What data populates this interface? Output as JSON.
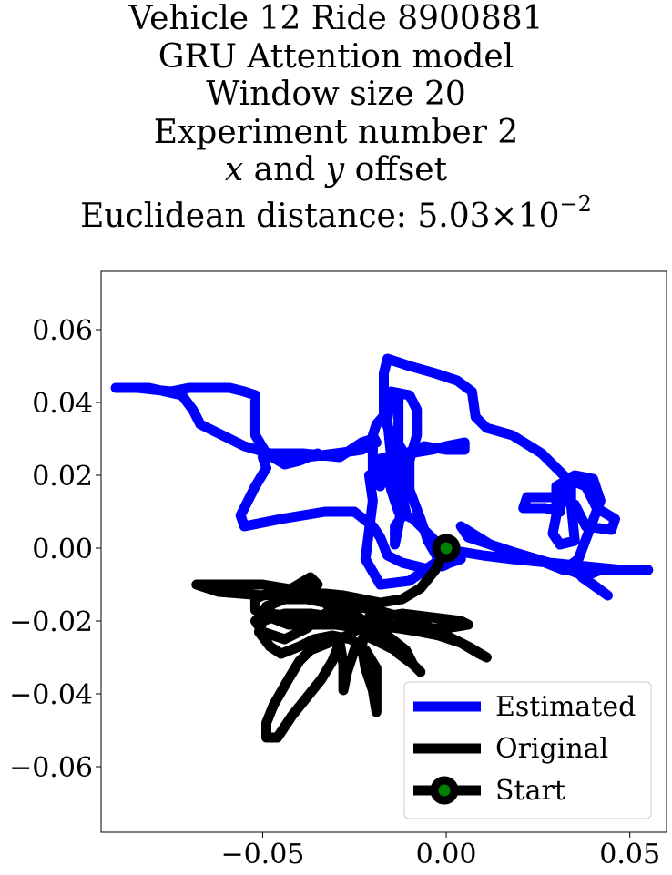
{
  "title": {
    "line1": "Vehicle 12 Ride 8900881",
    "line2": "GRU Attention model",
    "line3": "Window size 20",
    "line4": "Experiment number 2",
    "line5_x": "x",
    "line5_and": " and ",
    "line5_y": "y",
    "line5_rest": " offset",
    "line6_prefix": "Euclidean distance: 5.03",
    "line6_times": "×",
    "line6_base": "10",
    "line6_exp": "−2"
  },
  "chart_data": {
    "type": "line",
    "xlim": [
      -0.094,
      0.06
    ],
    "ylim": [
      -0.078,
      0.076
    ],
    "xticks": [
      -0.05,
      0.0,
      0.05
    ],
    "xtick_labels": [
      "−0.05",
      "0.00",
      "0.05"
    ],
    "yticks": [
      0.06,
      0.04,
      0.02,
      0.0,
      -0.02,
      -0.04,
      -0.06
    ],
    "ytick_labels": [
      "0.06",
      "0.04",
      "0.02",
      "0.00",
      "−0.02",
      "−0.04",
      "−0.06"
    ],
    "grid": false,
    "legend_position": "lower-right",
    "series": [
      {
        "name": "Estimated",
        "color": "#0000ff",
        "points": [
          [
            0.0,
            0.0
          ],
          [
            -0.003,
            -0.004
          ],
          [
            -0.01,
            -0.009
          ],
          [
            -0.018,
            -0.01
          ],
          [
            -0.022,
            -0.003
          ],
          [
            -0.021,
            0.005
          ],
          [
            -0.02,
            0.013
          ],
          [
            -0.021,
            0.02
          ],
          [
            -0.015,
            0.022
          ],
          [
            -0.012,
            0.027
          ],
          [
            -0.017,
            0.035
          ],
          [
            -0.017,
            0.048
          ],
          [
            -0.016,
            0.052
          ],
          [
            -0.01,
            0.05
          ],
          [
            -0.003,
            0.048
          ],
          [
            0.003,
            0.046
          ],
          [
            0.007,
            0.043
          ],
          [
            0.008,
            0.036
          ],
          [
            0.011,
            0.033
          ],
          [
            0.018,
            0.031
          ],
          [
            0.026,
            0.026
          ],
          [
            0.033,
            0.019
          ],
          [
            0.038,
            0.017
          ],
          [
            0.041,
            0.011
          ],
          [
            0.046,
            0.008
          ],
          [
            0.045,
            0.005
          ],
          [
            0.038,
            0.006
          ],
          [
            0.035,
            0.012
          ],
          [
            0.03,
            0.014
          ],
          [
            0.022,
            0.014
          ],
          [
            0.021,
            0.011
          ],
          [
            0.027,
            0.011
          ],
          [
            0.031,
            0.01
          ],
          [
            0.032,
            0.018
          ],
          [
            0.034,
            0.019
          ],
          [
            0.034,
            0.012
          ],
          [
            0.035,
            0.002
          ],
          [
            0.031,
            0.001
          ],
          [
            0.029,
            0.004
          ],
          [
            0.03,
            0.009
          ],
          [
            0.03,
            0.017
          ],
          [
            0.035,
            0.02
          ],
          [
            0.04,
            0.019
          ],
          [
            0.042,
            0.013
          ],
          [
            0.039,
            0.005
          ],
          [
            0.036,
            -0.003
          ],
          [
            0.032,
            -0.006
          ],
          [
            0.027,
            -0.004
          ],
          [
            0.02,
            -0.002
          ],
          [
            0.012,
            0.001
          ],
          [
            0.004,
            0.006
          ],
          [
            0.006,
            0.003
          ],
          [
            0.018,
            -0.001
          ],
          [
            0.028,
            -0.004
          ],
          [
            0.036,
            -0.007
          ],
          [
            0.044,
            -0.013
          ],
          [
            0.037,
            -0.008
          ],
          [
            0.042,
            -0.006
          ],
          [
            0.052,
            -0.006
          ],
          [
            0.055,
            -0.006
          ],
          [
            0.048,
            -0.006
          ],
          [
            0.038,
            -0.005
          ],
          [
            0.028,
            -0.004
          ],
          [
            0.018,
            -0.003
          ],
          [
            0.01,
            -0.002
          ],
          [
            0.004,
            -0.001
          ],
          [
            0.0,
            -0.003
          ],
          [
            -0.004,
            -0.006
          ],
          [
            -0.012,
            -0.004
          ],
          [
            -0.016,
            -0.002
          ],
          [
            -0.018,
            0.003
          ],
          [
            -0.02,
            0.006
          ],
          [
            -0.025,
            0.01
          ],
          [
            -0.033,
            0.01
          ],
          [
            -0.045,
            0.008
          ],
          [
            -0.055,
            0.006
          ],
          [
            -0.056,
            0.009
          ],
          [
            -0.052,
            0.017
          ],
          [
            -0.049,
            0.022
          ],
          [
            -0.05,
            0.025
          ],
          [
            -0.046,
            0.026
          ],
          [
            -0.038,
            0.025
          ],
          [
            -0.03,
            0.026
          ],
          [
            -0.023,
            0.027
          ],
          [
            -0.019,
            0.029
          ],
          [
            -0.02,
            0.031
          ],
          [
            -0.019,
            0.034
          ],
          [
            -0.013,
            0.041
          ],
          [
            -0.013,
            0.035
          ],
          [
            -0.013,
            0.027
          ],
          [
            -0.012,
            0.02
          ],
          [
            -0.012,
            0.014
          ],
          [
            -0.011,
            0.01
          ],
          [
            -0.014,
            0.006
          ],
          [
            -0.014,
            0.001
          ],
          [
            -0.013,
            0.006
          ],
          [
            -0.012,
            0.013
          ],
          [
            -0.013,
            0.018
          ],
          [
            -0.015,
            0.025
          ],
          [
            -0.016,
            0.035
          ],
          [
            -0.015,
            0.043
          ],
          [
            -0.01,
            0.042
          ],
          [
            -0.008,
            0.038
          ],
          [
            -0.008,
            0.031
          ],
          [
            -0.01,
            0.024
          ],
          [
            -0.01,
            0.016
          ],
          [
            -0.007,
            0.008
          ],
          [
            -0.005,
            0.002
          ],
          [
            -0.001,
            -0.005
          ],
          [
            0.001,
            -0.004
          ],
          [
            0.004,
            -0.003
          ],
          [
            -0.002,
            0.001
          ],
          [
            -0.006,
            0.005
          ],
          [
            -0.009,
            0.008
          ],
          [
            -0.013,
            0.01
          ],
          [
            -0.015,
            0.016
          ],
          [
            -0.016,
            0.021
          ],
          [
            -0.02,
            0.024
          ],
          [
            -0.016,
            0.025
          ],
          [
            -0.01,
            0.026
          ],
          [
            -0.004,
            0.027
          ],
          [
            0.0,
            0.028
          ],
          [
            0.005,
            0.029
          ],
          [
            0.005,
            0.027
          ],
          [
            0.0,
            0.027
          ],
          [
            -0.006,
            0.028
          ],
          [
            -0.011,
            0.026
          ],
          [
            -0.017,
            0.023
          ],
          [
            -0.017,
            0.019
          ],
          [
            -0.018,
            0.017
          ],
          [
            -0.02,
            0.02
          ],
          [
            -0.02,
            0.024
          ],
          [
            -0.02,
            0.03
          ],
          [
            -0.023,
            0.029
          ],
          [
            -0.026,
            0.027
          ],
          [
            -0.029,
            0.025
          ],
          [
            -0.039,
            0.026
          ],
          [
            -0.048,
            0.026
          ],
          [
            -0.055,
            0.028
          ],
          [
            -0.061,
            0.031
          ],
          [
            -0.067,
            0.034
          ],
          [
            -0.069,
            0.038
          ],
          [
            -0.072,
            0.042
          ],
          [
            -0.081,
            0.044
          ],
          [
            -0.086,
            0.044
          ],
          [
            -0.09,
            0.044
          ],
          [
            -0.084,
            0.044
          ],
          [
            -0.075,
            0.043
          ],
          [
            -0.07,
            0.044
          ],
          [
            -0.063,
            0.044
          ],
          [
            -0.059,
            0.044
          ],
          [
            -0.055,
            0.043
          ],
          [
            -0.052,
            0.042
          ],
          [
            -0.052,
            0.037
          ],
          [
            -0.052,
            0.031
          ],
          [
            -0.049,
            0.026
          ],
          [
            -0.044,
            0.023
          ],
          [
            -0.04,
            0.024
          ],
          [
            -0.035,
            0.026
          ]
        ]
      },
      {
        "name": "Original",
        "color": "#000000",
        "points": [
          [
            0.0,
            0.0
          ],
          [
            -0.003,
            -0.006
          ],
          [
            -0.007,
            -0.011
          ],
          [
            -0.012,
            -0.014
          ],
          [
            -0.018,
            -0.015
          ],
          [
            -0.028,
            -0.013
          ],
          [
            -0.038,
            -0.012
          ],
          [
            -0.05,
            -0.01
          ],
          [
            -0.061,
            -0.01
          ],
          [
            -0.068,
            -0.01
          ],
          [
            -0.062,
            -0.012
          ],
          [
            -0.05,
            -0.013
          ],
          [
            -0.04,
            -0.012
          ],
          [
            -0.035,
            -0.01
          ],
          [
            -0.037,
            -0.008
          ],
          [
            -0.042,
            -0.011
          ],
          [
            -0.048,
            -0.016
          ],
          [
            -0.052,
            -0.02
          ],
          [
            -0.05,
            -0.023
          ],
          [
            -0.044,
            -0.025
          ],
          [
            -0.038,
            -0.022
          ],
          [
            -0.033,
            -0.018
          ],
          [
            -0.028,
            -0.015
          ],
          [
            -0.023,
            -0.014
          ],
          [
            -0.02,
            -0.017
          ],
          [
            -0.022,
            -0.021
          ],
          [
            -0.027,
            -0.024
          ],
          [
            -0.032,
            -0.026
          ],
          [
            -0.037,
            -0.028
          ],
          [
            -0.04,
            -0.031
          ],
          [
            -0.043,
            -0.036
          ],
          [
            -0.047,
            -0.043
          ],
          [
            -0.049,
            -0.048
          ],
          [
            -0.049,
            -0.052
          ],
          [
            -0.046,
            -0.052
          ],
          [
            -0.042,
            -0.046
          ],
          [
            -0.038,
            -0.041
          ],
          [
            -0.034,
            -0.036
          ],
          [
            -0.031,
            -0.031
          ],
          [
            -0.029,
            -0.026
          ],
          [
            -0.028,
            -0.032
          ],
          [
            -0.028,
            -0.039
          ],
          [
            -0.027,
            -0.034
          ],
          [
            -0.025,
            -0.028
          ],
          [
            -0.022,
            -0.024
          ],
          [
            -0.018,
            -0.026
          ],
          [
            -0.014,
            -0.028
          ],
          [
            -0.01,
            -0.031
          ],
          [
            -0.007,
            -0.034
          ],
          [
            -0.011,
            -0.03
          ],
          [
            -0.016,
            -0.026
          ],
          [
            -0.022,
            -0.022
          ],
          [
            -0.03,
            -0.019
          ],
          [
            -0.037,
            -0.018
          ],
          [
            -0.044,
            -0.018
          ],
          [
            -0.05,
            -0.02
          ],
          [
            -0.051,
            -0.023
          ],
          [
            -0.048,
            -0.027
          ],
          [
            -0.045,
            -0.029
          ],
          [
            -0.04,
            -0.027
          ],
          [
            -0.036,
            -0.025
          ],
          [
            -0.031,
            -0.024
          ],
          [
            -0.026,
            -0.025
          ],
          [
            -0.022,
            -0.028
          ],
          [
            -0.019,
            -0.033
          ],
          [
            -0.019,
            -0.039
          ],
          [
            -0.019,
            -0.045
          ],
          [
            -0.02,
            -0.039
          ],
          [
            -0.022,
            -0.033
          ],
          [
            -0.023,
            -0.027
          ],
          [
            -0.022,
            -0.022
          ],
          [
            -0.018,
            -0.019
          ],
          [
            -0.012,
            -0.018
          ],
          [
            -0.004,
            -0.019
          ],
          [
            0.004,
            -0.02
          ],
          [
            0.006,
            -0.021
          ],
          [
            0.0,
            -0.022
          ],
          [
            -0.008,
            -0.022
          ],
          [
            -0.016,
            -0.021
          ],
          [
            -0.024,
            -0.021
          ],
          [
            -0.032,
            -0.02
          ],
          [
            -0.04,
            -0.019
          ],
          [
            -0.048,
            -0.018
          ],
          [
            -0.052,
            -0.017
          ],
          [
            -0.052,
            -0.014
          ],
          [
            -0.048,
            -0.012
          ],
          [
            -0.044,
            -0.012
          ],
          [
            -0.038,
            -0.014
          ],
          [
            -0.033,
            -0.015
          ],
          [
            -0.03,
            -0.018
          ],
          [
            -0.025,
            -0.02
          ],
          [
            -0.02,
            -0.021
          ],
          [
            -0.013,
            -0.022
          ],
          [
            -0.007,
            -0.023
          ],
          [
            -0.002,
            -0.024
          ],
          [
            0.004,
            -0.026
          ],
          [
            0.009,
            -0.029
          ],
          [
            0.011,
            -0.03
          ],
          [
            0.006,
            -0.027
          ],
          [
            0.0,
            -0.024
          ],
          [
            -0.006,
            -0.021
          ],
          [
            -0.012,
            -0.019
          ],
          [
            -0.019,
            -0.017
          ],
          [
            -0.025,
            -0.016
          ],
          [
            -0.031,
            -0.015
          ],
          [
            -0.038,
            -0.014
          ],
          [
            -0.044,
            -0.014
          ],
          [
            -0.049,
            -0.016
          ],
          [
            -0.048,
            -0.019
          ],
          [
            -0.043,
            -0.021
          ],
          [
            -0.037,
            -0.021
          ],
          [
            -0.03,
            -0.021
          ],
          [
            -0.023,
            -0.022
          ],
          [
            -0.016,
            -0.024
          ],
          [
            -0.011,
            -0.028
          ],
          [
            -0.009,
            -0.032
          ],
          [
            -0.013,
            -0.029
          ],
          [
            -0.017,
            -0.025
          ],
          [
            -0.02,
            -0.022
          ],
          [
            -0.025,
            -0.018
          ],
          [
            -0.032,
            -0.015
          ],
          [
            -0.038,
            -0.013
          ],
          [
            -0.045,
            -0.013
          ]
        ]
      }
    ],
    "start_point": {
      "name": "Start",
      "x": 0.0,
      "y": 0.0,
      "edge_color": "#000000",
      "face_color": "#008000"
    }
  }
}
